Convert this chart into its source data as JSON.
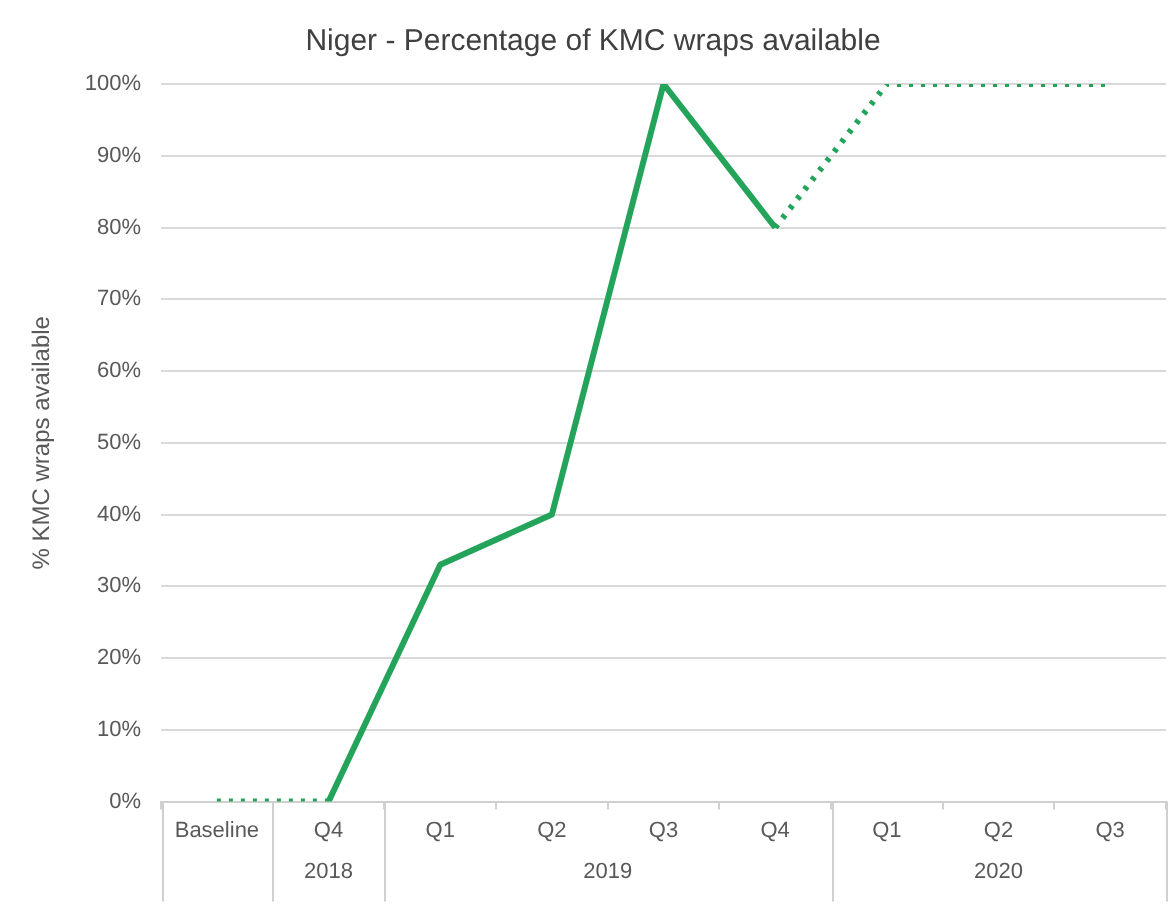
{
  "chart_data": {
    "type": "line",
    "title": "Niger - Percentage of KMC wraps available",
    "ylabel": "% KMC wraps available",
    "categories": [
      "Baseline",
      "Q4",
      "Q1",
      "Q2",
      "Q3",
      "Q4",
      "Q1",
      "Q2",
      "Q3"
    ],
    "series": [
      {
        "color": "#23a45a",
        "line_style": "solid",
        "values": [
          null,
          0,
          33,
          40,
          100,
          80,
          null,
          null,
          null
        ]
      },
      {
        "color": "#23a45a",
        "line_style": "dotted",
        "values": [
          0,
          0,
          null,
          null,
          null,
          80,
          100,
          100,
          100
        ]
      }
    ],
    "ylim": [
      0,
      100
    ],
    "yticks": [
      {
        "value": 0,
        "label": "0%"
      },
      {
        "value": 10,
        "label": "10%"
      },
      {
        "value": 20,
        "label": "20%"
      },
      {
        "value": 30,
        "label": "30%"
      },
      {
        "value": 40,
        "label": "40%"
      },
      {
        "value": 50,
        "label": "50%"
      },
      {
        "value": 60,
        "label": "60%"
      },
      {
        "value": 70,
        "label": "70%"
      },
      {
        "value": 80,
        "label": "80%"
      },
      {
        "value": 90,
        "label": "90%"
      },
      {
        "value": 100,
        "label": "100%"
      }
    ],
    "grid": "y",
    "legend": false,
    "marker": "none",
    "annotations": [
      "2018",
      "2019",
      "2020"
    ]
  }
}
